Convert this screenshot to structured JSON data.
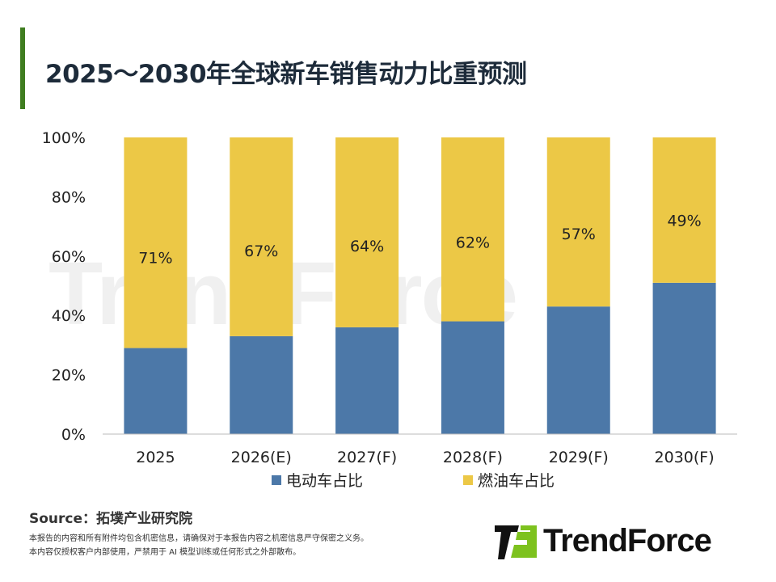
{
  "title": "2025～2030年全球新车销售动力比重预测",
  "chart_data": {
    "type": "bar",
    "stacked": true,
    "categories": [
      "2025",
      "2026(E)",
      "2027(F)",
      "2028(F)",
      "2029(F)",
      "2030(F)"
    ],
    "series": [
      {
        "name": "电动车占比",
        "values": [
          29,
          33,
          36,
          38,
          43,
          51
        ],
        "color": "#4c78a8"
      },
      {
        "name": "燃油车占比",
        "values": [
          71,
          67,
          64,
          62,
          57,
          49
        ],
        "color": "#ecc846",
        "labels": [
          "71%",
          "67%",
          "64%",
          "62%",
          "57%",
          "49%"
        ]
      }
    ],
    "ylim": [
      0,
      100
    ],
    "yticks": [
      "0%",
      "20%",
      "40%",
      "60%",
      "80%",
      "100%"
    ],
    "grid": false,
    "legend": "bottom"
  },
  "source": "Source：拓墣产业研究院",
  "notes": [
    "本报告的内容和所有附件均包含机密信息，请确保对于本报告内容之机密信息严守保密之义务。",
    "本内容仅授权客户内部使用，严禁用于 AI 模型训练或任何形式之外部散布。"
  ],
  "logo": {
    "text": "TrendForce",
    "colors": [
      "#111111",
      "#7dc21e"
    ]
  }
}
